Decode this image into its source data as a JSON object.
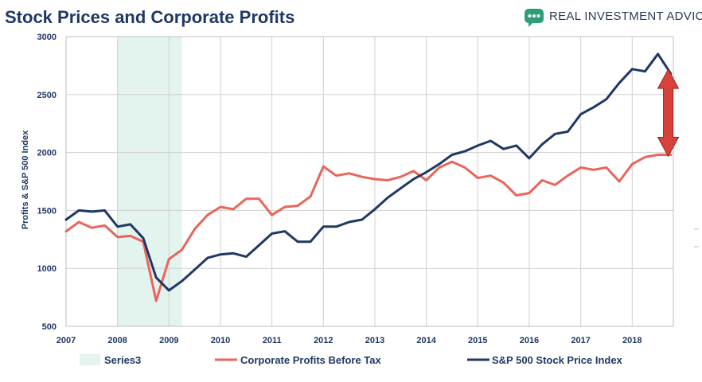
{
  "header": {
    "title": "Stock Prices and Corporate Profits",
    "brand_text": "REAL INVESTMENT ADVICE"
  },
  "chart_data": {
    "type": "line",
    "ylabel": "Profits & S&P 500 Index",
    "ylim": [
      500,
      3000
    ],
    "yticks": [
      500,
      1000,
      1500,
      2000,
      2500,
      3000
    ],
    "xlim": [
      2007,
      2018.8
    ],
    "xticks": [
      2007,
      2008,
      2009,
      2010,
      2011,
      2012,
      2013,
      2014,
      2015,
      2016,
      2017,
      2018
    ],
    "grid": true,
    "legend_position": "bottom",
    "shaded_regions": [
      {
        "name": "Series3",
        "start": 2008.0,
        "end": 2009.25,
        "color": "#e3f3ee"
      }
    ],
    "annotation": {
      "type": "double-arrow",
      "x": 2018.7,
      "y_top": 2690,
      "y_bottom": 1980,
      "color": "#d9413b"
    },
    "series": [
      {
        "name": "Corporate Profits Before Tax",
        "color": "#e8665c",
        "x": [
          2007.0,
          2007.25,
          2007.5,
          2007.75,
          2008.0,
          2008.25,
          2008.5,
          2008.75,
          2009.0,
          2009.25,
          2009.5,
          2009.75,
          2010.0,
          2010.25,
          2010.5,
          2010.75,
          2011.0,
          2011.25,
          2011.5,
          2011.75,
          2012.0,
          2012.25,
          2012.5,
          2012.75,
          2013.0,
          2013.25,
          2013.5,
          2013.75,
          2014.0,
          2014.25,
          2014.5,
          2014.75,
          2015.0,
          2015.25,
          2015.5,
          2015.75,
          2016.0,
          2016.25,
          2016.5,
          2016.75,
          2017.0,
          2017.25,
          2017.5,
          2017.75,
          2018.0,
          2018.25,
          2018.5,
          2018.75
        ],
        "values": [
          1320,
          1400,
          1350,
          1370,
          1270,
          1280,
          1230,
          720,
          1080,
          1160,
          1340,
          1460,
          1530,
          1510,
          1600,
          1600,
          1460,
          1530,
          1540,
          1620,
          1880,
          1800,
          1820,
          1790,
          1770,
          1760,
          1790,
          1840,
          1760,
          1870,
          1920,
          1870,
          1780,
          1800,
          1740,
          1630,
          1650,
          1760,
          1720,
          1800,
          1870,
          1850,
          1870,
          1750,
          1900,
          1960,
          1980,
          1980
        ]
      },
      {
        "name": "S&P 500 Stock Price Index",
        "color": "#1f3864",
        "x": [
          2007.0,
          2007.25,
          2007.5,
          2007.75,
          2008.0,
          2008.25,
          2008.5,
          2008.75,
          2009.0,
          2009.25,
          2009.5,
          2009.75,
          2010.0,
          2010.25,
          2010.5,
          2010.75,
          2011.0,
          2011.25,
          2011.5,
          2011.75,
          2012.0,
          2012.25,
          2012.5,
          2012.75,
          2013.0,
          2013.25,
          2013.5,
          2013.75,
          2014.0,
          2014.25,
          2014.5,
          2014.75,
          2015.0,
          2015.25,
          2015.5,
          2015.75,
          2016.0,
          2016.25,
          2016.5,
          2016.75,
          2017.0,
          2017.25,
          2017.5,
          2017.75,
          2018.0,
          2018.25,
          2018.5,
          2018.75
        ],
        "values": [
          1420,
          1500,
          1490,
          1500,
          1360,
          1380,
          1260,
          920,
          810,
          890,
          990,
          1090,
          1120,
          1130,
          1100,
          1200,
          1300,
          1320,
          1230,
          1230,
          1360,
          1360,
          1400,
          1420,
          1510,
          1610,
          1690,
          1770,
          1830,
          1900,
          1980,
          2010,
          2060,
          2100,
          2030,
          2060,
          1950,
          2070,
          2160,
          2180,
          2330,
          2390,
          2460,
          2600,
          2720,
          2700,
          2850,
          2680
        ]
      }
    ]
  },
  "colors": {
    "title": "#1f3864",
    "grid": "#d0d0d0",
    "axis_text": "#1f3864"
  },
  "icons": {
    "brand_logo": "chat-bubble-icon"
  }
}
